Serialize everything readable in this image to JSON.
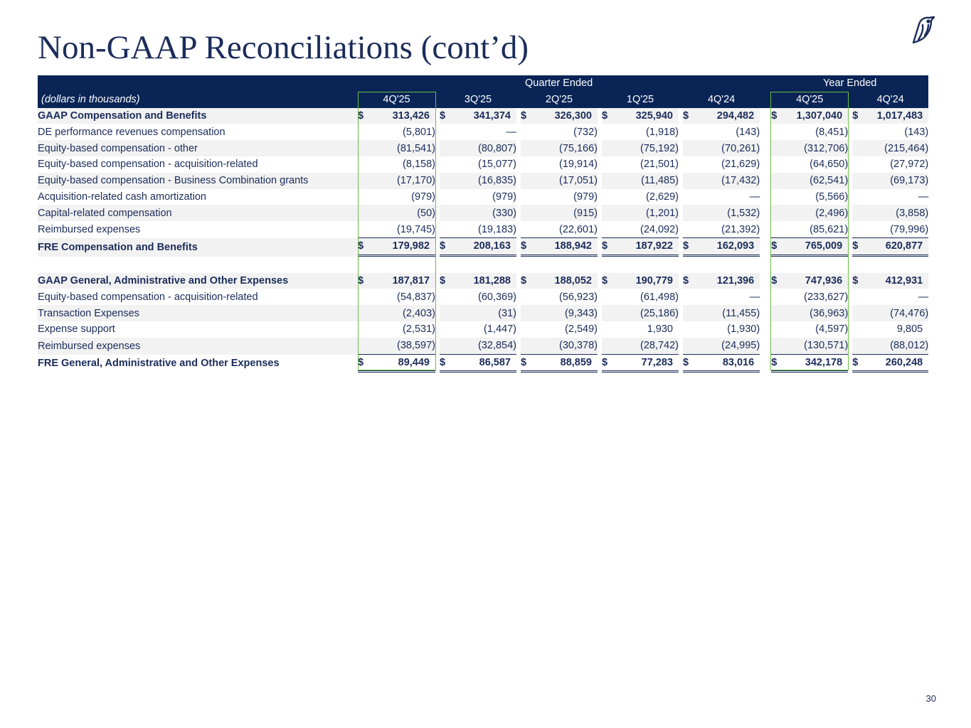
{
  "title": "Non-GAAP Reconciliations (cont’d)",
  "page_number": "30",
  "logo_icon": "bird-logo-icon",
  "colors": {
    "header_bg": "#0a2456",
    "text": "#1b2c5a",
    "highlight": "#6bbd45",
    "row_shade": "#f2f2f2"
  },
  "table": {
    "group_headers": {
      "quarter": "Quarter Ended",
      "year": "Year Ended"
    },
    "label_header": "(dollars in thousands)",
    "columns": [
      "4Q'25",
      "3Q'25",
      "2Q'25",
      "1Q'25",
      "4Q'24",
      "4Q'25",
      "4Q'24"
    ],
    "rows": [
      {
        "label": "GAAP Compensation and Benefits",
        "values": [
          "313,426",
          "341,374",
          "326,300",
          "325,940",
          "294,482",
          "1,307,040",
          "1,017,483"
        ]
      },
      {
        "label": "DE performance revenues compensation",
        "values": [
          "(5,801)",
          "—",
          "(732)",
          "(1,918)",
          "(143)",
          "(8,451)",
          "(143)"
        ]
      },
      {
        "label": "Equity-based compensation - other",
        "values": [
          "(81,541)",
          "(80,807)",
          "(75,166)",
          "(75,192)",
          "(70,261)",
          "(312,706)",
          "(215,464)"
        ]
      },
      {
        "label": "Equity-based compensation - acquisition-related",
        "values": [
          "(8,158)",
          "(15,077)",
          "(19,914)",
          "(21,501)",
          "(21,629)",
          "(64,650)",
          "(27,972)"
        ]
      },
      {
        "label": "Equity-based compensation - Business Combination grants",
        "values": [
          "(17,170)",
          "(16,835)",
          "(17,051)",
          "(11,485)",
          "(17,432)",
          "(62,541)",
          "(69,173)"
        ]
      },
      {
        "label": "Acquisition-related cash amortization",
        "values": [
          "(979)",
          "(979)",
          "(979)",
          "(2,629)",
          "—",
          "(5,566)",
          "—"
        ]
      },
      {
        "label": "Capital-related compensation",
        "values": [
          "(50)",
          "(330)",
          "(915)",
          "(1,201)",
          "(1,532)",
          "(2,496)",
          "(3,858)"
        ]
      },
      {
        "label": "Reimbursed expenses",
        "values": [
          "(19,745)",
          "(19,183)",
          "(22,601)",
          "(24,092)",
          "(21,392)",
          "(85,621)",
          "(79,996)"
        ]
      },
      {
        "label": "FRE Compensation and Benefits",
        "values": [
          "179,982",
          "208,163",
          "188,942",
          "187,922",
          "162,093",
          "765,009",
          "620,877"
        ]
      },
      {
        "label": "GAAP General, Administrative and Other Expenses",
        "values": [
          "187,817",
          "181,288",
          "188,052",
          "190,779",
          "121,396",
          "747,936",
          "412,931"
        ]
      },
      {
        "label": "Equity-based compensation - acquisition-related",
        "values": [
          "(54,837)",
          "(60,369)",
          "(56,923)",
          "(61,498)",
          "—",
          "(233,627)",
          "—"
        ]
      },
      {
        "label": "Transaction Expenses",
        "values": [
          "(2,403)",
          "(31)",
          "(9,343)",
          "(25,186)",
          "(11,455)",
          "(36,963)",
          "(74,476)"
        ]
      },
      {
        "label": "Expense support",
        "values": [
          "(2,531)",
          "(1,447)",
          "(2,549)",
          "1,930",
          "(1,930)",
          "(4,597)",
          "9,805"
        ]
      },
      {
        "label": "Reimbursed expenses",
        "values": [
          "(38,597)",
          "(32,854)",
          "(30,378)",
          "(28,742)",
          "(24,995)",
          "(130,571)",
          "(88,012)"
        ]
      },
      {
        "label": "FRE General, Administrative and Other Expenses",
        "values": [
          "89,449",
          "86,587",
          "88,859",
          "77,283",
          "83,016",
          "342,178",
          "260,248"
        ]
      }
    ]
  }
}
